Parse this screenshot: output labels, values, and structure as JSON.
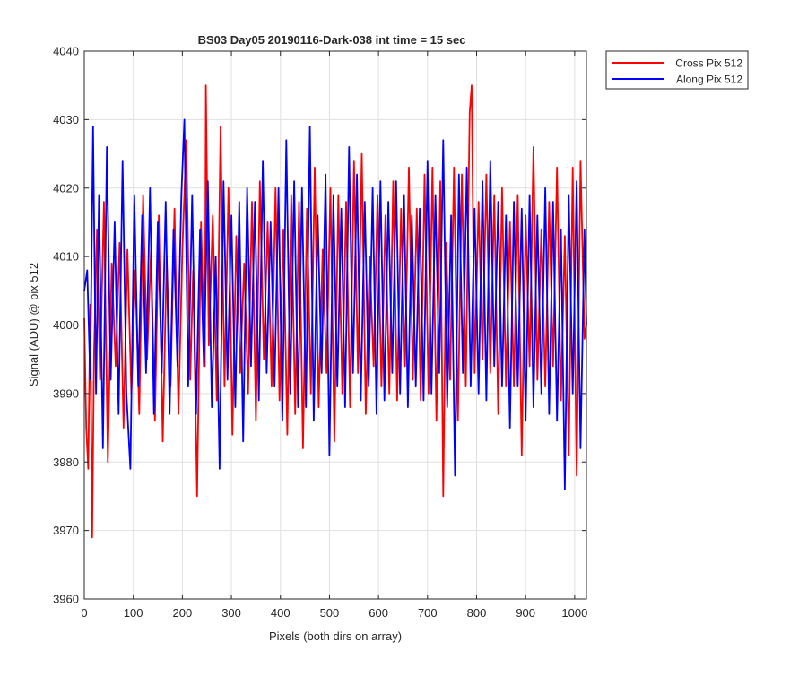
{
  "chart_data": {
    "type": "line",
    "title": "BS03 Day05 20190116-Dark-038 int time = 15 sec",
    "xlabel": "Pixels (both dirs on array)",
    "ylabel": "Signal (ADU) @ pix 512",
    "xlim": [
      0,
      1024
    ],
    "ylim": [
      3960,
      4040
    ],
    "xticks": [
      0,
      100,
      200,
      300,
      400,
      500,
      600,
      700,
      800,
      900,
      1000
    ],
    "yticks": [
      3960,
      3970,
      3980,
      3990,
      4000,
      4010,
      4020,
      4030,
      4040
    ],
    "grid": true,
    "legend_position": "outside-top-right",
    "series": [
      {
        "name": "Cross Pix 512",
        "color": "#ff0000",
        "x": [
          0,
          4,
          8,
          12,
          16,
          20,
          26,
          32,
          40,
          48,
          56,
          64,
          72,
          80,
          88,
          96,
          104,
          112,
          120,
          128,
          136,
          144,
          152,
          160,
          168,
          176,
          184,
          192,
          200,
          208,
          216,
          222,
          230,
          238,
          246,
          248,
          254,
          262,
          270,
          278,
          286,
          294,
          302,
          310,
          318,
          326,
          334,
          342,
          350,
          358,
          366,
          374,
          382,
          390,
          398,
          406,
          414,
          422,
          430,
          438,
          446,
          454,
          462,
          470,
          478,
          486,
          494,
          502,
          510,
          518,
          526,
          534,
          542,
          550,
          558,
          566,
          574,
          582,
          590,
          598,
          606,
          614,
          622,
          630,
          638,
          646,
          654,
          662,
          670,
          678,
          686,
          694,
          702,
          710,
          718,
          726,
          732,
          738,
          746,
          754,
          762,
          770,
          778,
          786,
          790,
          796,
          804,
          812,
          820,
          828,
          836,
          844,
          852,
          860,
          868,
          876,
          884,
          892,
          900,
          908,
          916,
          924,
          932,
          940,
          948,
          956,
          964,
          972,
          980,
          988,
          996,
          1004,
          1012,
          1020,
          1024
        ],
        "values": [
          4001,
          3985,
          3979,
          4003,
          3969,
          3996,
          4014,
          3992,
          4018,
          3980,
          4009,
          3994,
          4012,
          3985,
          4011,
          3990,
          4008,
          3987,
          4019,
          3995,
          4011,
          3986,
          4016,
          3983,
          4010,
          3991,
          4017,
          3987,
          4011,
          4027,
          3992,
          4008,
          3975,
          4015,
          3994,
          4035,
          3997,
          4016,
          3989,
          4029,
          3991,
          4020,
          3984,
          4013,
          3993,
          4009,
          3990,
          4018,
          3986,
          4021,
          3995,
          4015,
          3991,
          4020,
          3989,
          4014,
          3984,
          4019,
          3987,
          4018,
          3982,
          4017,
          3990,
          4023,
          3988,
          4011,
          3993,
          4020,
          3983,
          4019,
          3990,
          4018,
          3988,
          4024,
          3993,
          4025,
          3987,
          4010,
          3994,
          4019,
          3991,
          4016,
          3990,
          4021,
          3989,
          4017,
          3994,
          4023,
          3992,
          4017,
          3989,
          4022,
          3990,
          4023,
          3986,
          4021,
          3975,
          4012,
          3992,
          4023,
          3986,
          4022,
          3991,
          4031,
          4035,
          3993,
          4018,
          3995,
          4022,
          3993,
          4019,
          3987,
          4020,
          3991,
          4015,
          3991,
          4019,
          3981,
          4016,
          3994,
          4026,
          3992,
          4014,
          3991,
          4018,
          3994,
          4023,
          3989,
          4013,
          3981,
          4023,
          3978,
          4024,
          3998,
          4000
        ]
      },
      {
        "name": "Along Pix 512",
        "color": "#0000ff",
        "x": [
          0,
          6,
          12,
          18,
          24,
          30,
          38,
          46,
          54,
          62,
          70,
          78,
          86,
          94,
          102,
          110,
          118,
          126,
          134,
          142,
          150,
          158,
          166,
          174,
          182,
          190,
          198,
          204,
          212,
          220,
          228,
          236,
          244,
          252,
          260,
          268,
          276,
          284,
          292,
          300,
          308,
          316,
          324,
          332,
          340,
          348,
          356,
          364,
          372,
          380,
          388,
          396,
          404,
          412,
          420,
          428,
          436,
          444,
          452,
          460,
          468,
          476,
          484,
          492,
          500,
          508,
          516,
          524,
          532,
          540,
          548,
          556,
          564,
          572,
          580,
          588,
          596,
          604,
          612,
          620,
          628,
          636,
          644,
          652,
          660,
          668,
          676,
          684,
          692,
          700,
          708,
          716,
          724,
          732,
          740,
          748,
          756,
          764,
          772,
          780,
          788,
          796,
          804,
          812,
          820,
          828,
          836,
          844,
          852,
          860,
          868,
          876,
          884,
          892,
          900,
          908,
          916,
          924,
          932,
          940,
          948,
          956,
          964,
          972,
          980,
          988,
          996,
          1004,
          1012,
          1020,
          1024
        ],
        "values": [
          4005,
          4008,
          3992,
          4029,
          3990,
          4019,
          3982,
          4026,
          3992,
          4015,
          3987,
          4024,
          3990,
          3979,
          4019,
          3991,
          4016,
          3993,
          4020,
          3987,
          4015,
          3993,
          4018,
          3987,
          4014,
          3994,
          4019,
          4030,
          3991,
          4019,
          3987,
          4014,
          3994,
          4021,
          3988,
          4010,
          3979,
          4021,
          3992,
          4016,
          3988,
          4018,
          3983,
          4020,
          3994,
          4018,
          3989,
          4024,
          3993,
          4015,
          3991,
          4020,
          3986,
          4027,
          3990,
          4021,
          3988,
          4020,
          3988,
          4029,
          3986,
          4016,
          3993,
          4022,
          3981,
          4019,
          3991,
          4017,
          3988,
          4026,
          3993,
          4022,
          3989,
          4018,
          3991,
          4020,
          3987,
          4021,
          3989,
          4018,
          3993,
          4021,
          3990,
          4019,
          3988,
          4016,
          3991,
          4017,
          3989,
          4024,
          3990,
          4019,
          3993,
          4027,
          3988,
          4016,
          3978,
          4022,
          3993,
          4023,
          3991,
          4017,
          3990,
          4021,
          3989,
          4024,
          3994,
          4018,
          3991,
          4016,
          3985,
          4018,
          3991,
          4017,
          3986,
          4019,
          3988,
          4016,
          3990,
          4020,
          3987,
          4018,
          3986,
          4014,
          3976,
          4019,
          3990,
          4021,
          3982,
          4014,
          4000
        ]
      }
    ]
  }
}
